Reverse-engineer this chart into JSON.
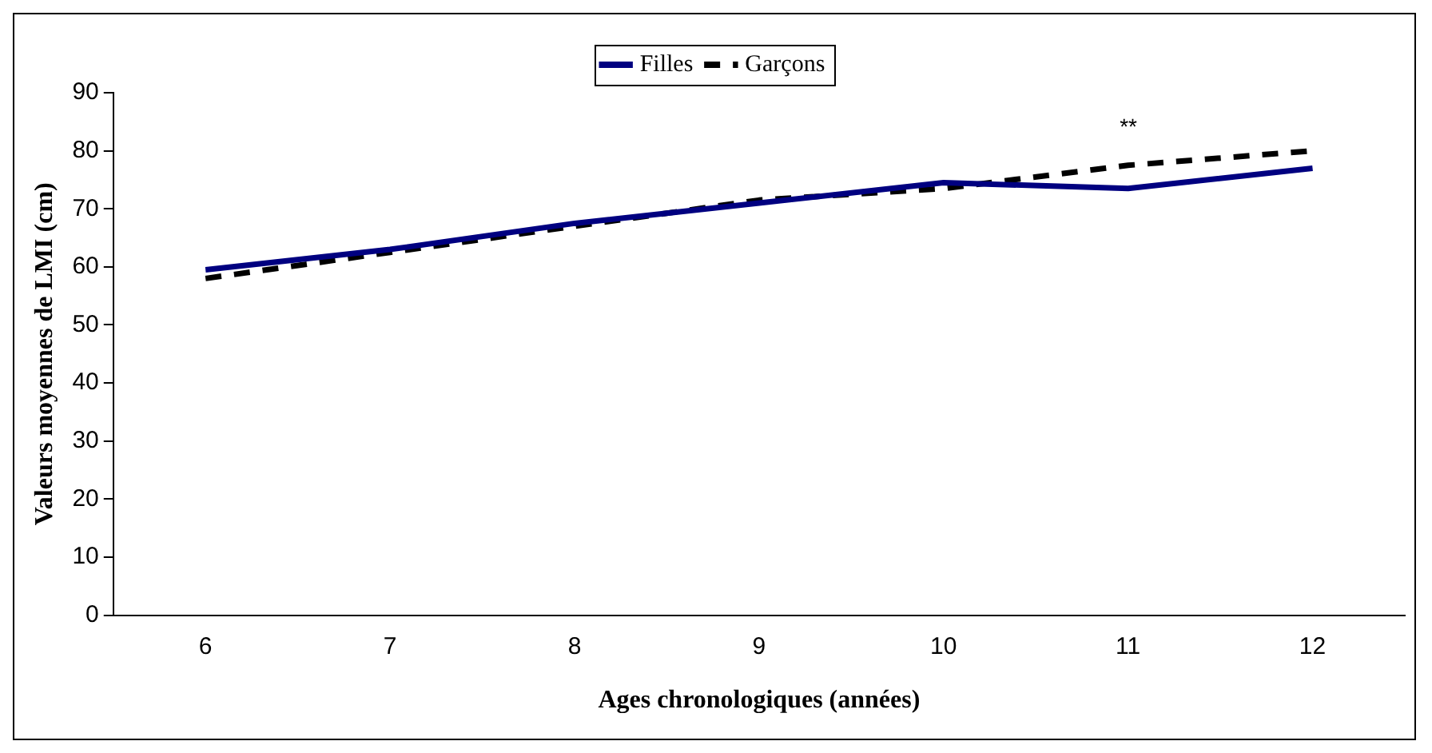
{
  "chart_data": {
    "type": "line",
    "xlabel": "Ages chronologiques (années)",
    "ylabel": "Valeurs moyennes de LMI (cm)",
    "categories": [
      "6",
      "7",
      "8",
      "9",
      "10",
      "11",
      "12"
    ],
    "series": [
      {
        "name": "Filles",
        "color": "#000080",
        "values": [
          59.5,
          63,
          67.5,
          71,
          74.5,
          73.5,
          77
        ],
        "line_style": "solid"
      },
      {
        "name": "Garçons",
        "color": "#000000",
        "values": [
          58,
          62.5,
          67,
          71.5,
          73.5,
          77.5,
          80
        ],
        "line_style": "dashed"
      }
    ],
    "ylim": [
      0,
      90
    ],
    "yticks": [
      0,
      10,
      20,
      30,
      40,
      50,
      60,
      70,
      80,
      90
    ],
    "grid": false,
    "legend": "top",
    "marker": "none",
    "annotations": [
      "**"
    ]
  }
}
